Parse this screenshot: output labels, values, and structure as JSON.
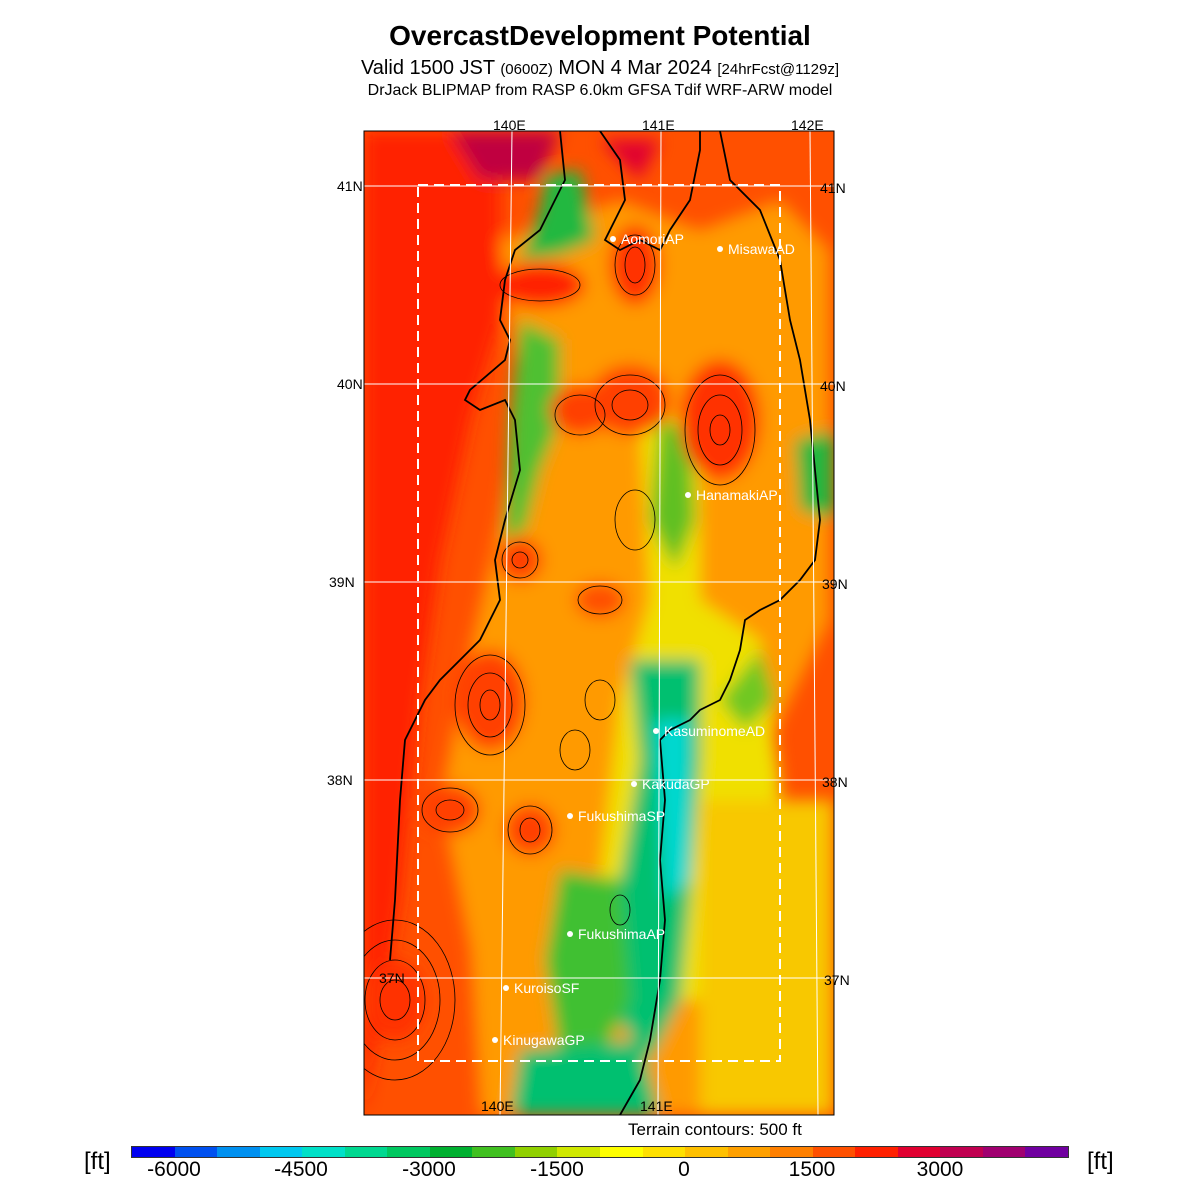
{
  "header": {
    "title": "OvercastDevelopment Potential",
    "valid_main": "Valid 1500 JST ",
    "valid_z": "(0600Z)",
    "valid_date": " MON 4 Mar 2024 ",
    "valid_fcst": "[24hrFcst@1129z]",
    "model": "DrJack BLIPMAP from RASP 6.0km GFSA Tdif WRF-ARW model"
  },
  "map": {
    "lon_labels": [
      "140E",
      "141E",
      "142E"
    ],
    "lat_labels": [
      "41N",
      "40N",
      "39N",
      "38N",
      "37N"
    ],
    "stations": [
      {
        "name": "AomoriAP"
      },
      {
        "name": "MisawaAD"
      },
      {
        "name": "HanamakiAP"
      },
      {
        "name": "KasuminomeAD"
      },
      {
        "name": "KakudaGP"
      },
      {
        "name": "FukushimaSP"
      },
      {
        "name": "FukushimaAP"
      },
      {
        "name": "KuroisoSF"
      },
      {
        "name": "KinugawaGP"
      }
    ],
    "terrain_note": "Terrain contours: 500 ft"
  },
  "colorbar": {
    "unit_left": "[ft]",
    "unit_right": "[ft]",
    "ticks": [
      "-6000",
      "-4500",
      "-3000",
      "-1500",
      "0",
      "1500",
      "3000"
    ],
    "colors": [
      "#0000f0",
      "#0050f0",
      "#0090f0",
      "#00c8f0",
      "#00e0c8",
      "#00d890",
      "#00c860",
      "#00b030",
      "#40c020",
      "#90d000",
      "#d0e800",
      "#ffff00",
      "#ffe000",
      "#ffc000",
      "#ffa000",
      "#ff8000",
      "#ff5000",
      "#ff2000",
      "#e00030",
      "#c00050",
      "#a00070",
      "#7000a0"
    ]
  }
}
